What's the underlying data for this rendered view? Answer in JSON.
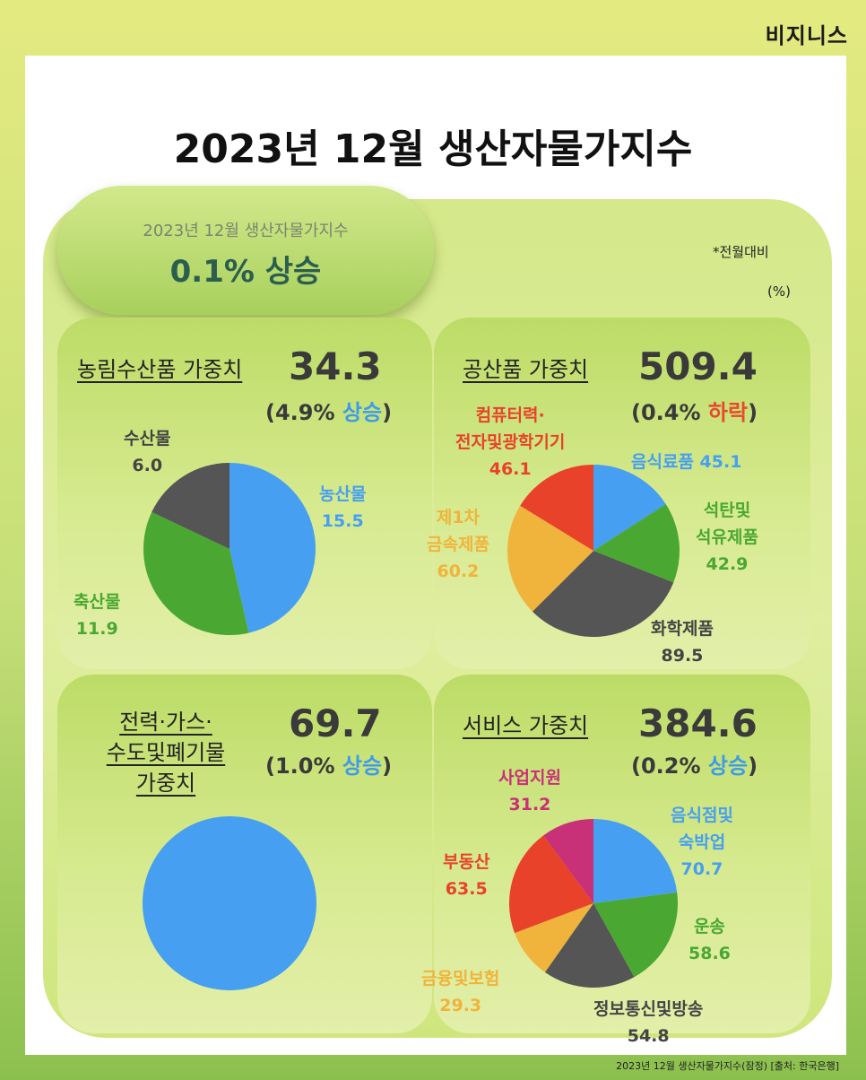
{
  "brand": "비지니스",
  "title": "2023년 12월 생산자물가지수",
  "header": {
    "subtitle": "2023년 12월 생산자물가지수",
    "headline": "0.1% 상승"
  },
  "note": "*전월대비",
  "unit": "(%)",
  "footer": "2023년 12월 생산자물가지수(잠정) [출처: 한국은행]",
  "panels": {
    "agri": {
      "title": "농림수산품 가중치",
      "value": "34.3",
      "change_open": "(4.9% ",
      "change_dir": "상승",
      "change_close": ")"
    },
    "industrial": {
      "title": "공산품 가중치",
      "value": "509.4",
      "change_open": "(0.4% ",
      "change_dir": "하락",
      "change_close": ")"
    },
    "utility": {
      "title_lines": [
        "전력·가스·",
        "수도및폐기물",
        "가중치"
      ],
      "value": "69.7",
      "change_open": "(1.0% ",
      "change_dir": "상승",
      "change_close": ")"
    },
    "service": {
      "title": "서비스 가중치",
      "value": "384.6",
      "change_open": "(0.2% ",
      "change_dir": "상승",
      "change_close": ")"
    }
  },
  "colors": {
    "blue": "#469ff0",
    "green": "#4aa832",
    "gray": "#555555",
    "orange": "#f0b43c",
    "red": "#e8422a",
    "magenta": "#c83078"
  },
  "chart_data": [
    {
      "type": "pie",
      "title": "농림수산품 가중치",
      "categories": [
        "농산물",
        "축산물",
        "수산물"
      ],
      "values": [
        15.5,
        11.9,
        6.0
      ],
      "colors": [
        "#469ff0",
        "#4aa832",
        "#555555"
      ]
    },
    {
      "type": "pie",
      "title": "공산품 가중치",
      "categories": [
        "음식료품",
        "석탄및 석유제품",
        "화학제품",
        "제1차 금속제품",
        "컴퓨터력·전자및광학기기"
      ],
      "values": [
        45.1,
        42.9,
        89.5,
        60.2,
        46.1
      ],
      "colors": [
        "#469ff0",
        "#4aa832",
        "#555555",
        "#f0b43c",
        "#e8422a"
      ]
    },
    {
      "type": "pie",
      "title": "전력·가스·수도및폐기물 가중치",
      "categories": [
        ""
      ],
      "values": [
        69.7
      ],
      "colors": [
        "#469ff0"
      ]
    },
    {
      "type": "pie",
      "title": "서비스 가중치",
      "categories": [
        "음식점및숙박업",
        "운송",
        "정보통신및방송",
        "금융및보험",
        "부동산",
        "사업지원"
      ],
      "values": [
        70.7,
        58.6,
        54.8,
        29.3,
        63.5,
        31.2
      ],
      "colors": [
        "#469ff0",
        "#4aa832",
        "#555555",
        "#f0b43c",
        "#e8422a",
        "#c83078"
      ]
    }
  ],
  "labels": {
    "agri": [
      {
        "name": "농산물",
        "value": "15.5"
      },
      {
        "name": "축산물",
        "value": "11.9"
      },
      {
        "name": "수산물",
        "value": "6.0"
      }
    ],
    "industrial": [
      {
        "name": "음식료품",
        "value": "45.1"
      },
      {
        "name_lines": [
          "석탄및",
          "석유제품"
        ],
        "value": "42.9"
      },
      {
        "name": "화학제품",
        "value": "89.5"
      },
      {
        "name_lines": [
          "제1차",
          "금속제품"
        ],
        "value": "60.2"
      },
      {
        "name_lines": [
          "컴퓨터력·",
          "전자및광학기기"
        ],
        "value": "46.1"
      }
    ],
    "service": [
      {
        "name_lines": [
          "음식점및",
          "숙박업"
        ],
        "value": "70.7"
      },
      {
        "name": "운송",
        "value": "58.6"
      },
      {
        "name": "정보통신및방송",
        "value": "54.8"
      },
      {
        "name": "금융및보험",
        "value": "29.3"
      },
      {
        "name": "부동산",
        "value": "63.5"
      },
      {
        "name": "사업지원",
        "value": "31.2"
      }
    ]
  }
}
